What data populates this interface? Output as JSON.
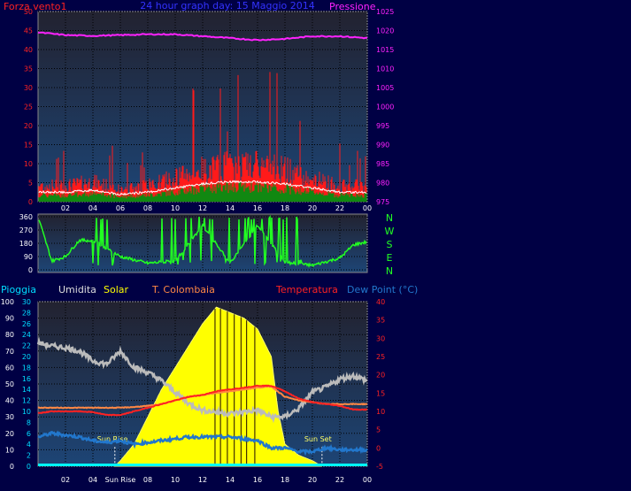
{
  "top_panel": {
    "title_left": "Forza vento1",
    "title_center": "24 hour graph day: 15 Maggio 2014",
    "title_right": "Pressione",
    "left_ticks": [
      "0",
      "5",
      "10",
      "15",
      "20",
      "25",
      "30",
      "35",
      "40",
      "45",
      "50"
    ],
    "right_ticks": [
      "975",
      "980",
      "985",
      "990",
      "995",
      "1000",
      "1005",
      "1010",
      "1015",
      "1020",
      "1025"
    ],
    "x_ticks": [
      "02",
      "04",
      "06",
      "08",
      "10",
      "12",
      "14",
      "16",
      "18",
      "20",
      "22",
      "00"
    ]
  },
  "dir_panel": {
    "left_ticks": [
      "0",
      "90",
      "180",
      "270",
      "360"
    ],
    "compass": [
      "N",
      "W",
      "S",
      "E",
      "N"
    ]
  },
  "bottom_panel": {
    "header": {
      "pioggia": "Pioggia",
      "umidita": "Umidita",
      "solar": "Solar",
      "tcol": "T. Colombaia",
      "temperatura": "Temperatura",
      "dewpoint": "Dew Point (°C)"
    },
    "pioggia_ticks": [
      "0",
      "10",
      "20",
      "30",
      "40",
      "50",
      "60",
      "70",
      "80",
      "90",
      "100"
    ],
    "solar_ticks": [
      "0",
      "2",
      "4",
      "6",
      "8",
      "10",
      "12",
      "14",
      "16",
      "18",
      "20",
      "22",
      "24",
      "26",
      "28",
      "30"
    ],
    "temp_ticks": [
      "-5",
      "0",
      "5",
      "10",
      "15",
      "20",
      "25",
      "30",
      "35",
      "40"
    ],
    "x_ticks": [
      "02",
      "04",
      "Sun Rise",
      "08",
      "10",
      "12",
      "14",
      "16",
      "18",
      "20",
      "22",
      "00"
    ],
    "sunrise_label": "Sun Rise",
    "sunset_label": "Sun Set"
  },
  "colors": {
    "background": "#000044",
    "panel_top": "#222233",
    "panel_bottom": "#1e3f6e",
    "wind": "#ff1a1a",
    "gust_white": "#ffffff",
    "wind_avg": "#118811",
    "pressure": "#ff22ff",
    "direction": "#22ff22",
    "solar": "#ffff00",
    "humidity": "#bbbbbb",
    "temperature": "#ff2222",
    "tcol": "#ff8844",
    "dewpoint": "#2277cc",
    "rain": "#00ffff"
  },
  "chart_data": [
    {
      "type": "line",
      "name_hint": "wind and pressure",
      "x_range_hours": [
        0,
        24
      ],
      "left_ylim": [
        0,
        50
      ],
      "right_ylim": [
        975,
        1025
      ],
      "grid": true,
      "series": [
        {
          "name": "Forza vento1",
          "x": [
            0,
            2,
            4,
            6,
            8,
            10,
            12,
            14,
            16,
            18,
            20,
            22,
            24
          ],
          "values": [
            4,
            4,
            5,
            3,
            4,
            6,
            8,
            9,
            9,
            8,
            6,
            4,
            4
          ]
        },
        {
          "name": "Pressione",
          "x": [
            0,
            2,
            4,
            6,
            8,
            10,
            12,
            14,
            16,
            18,
            20,
            22,
            24
          ],
          "values": [
            1019.5,
            1018.8,
            1018.6,
            1018.8,
            1019.0,
            1019.0,
            1018.5,
            1018.0,
            1017.5,
            1017.8,
            1018.5,
            1018.5,
            1018.0
          ]
        }
      ]
    },
    {
      "type": "line",
      "name_hint": "wind direction",
      "x_range_hours": [
        0,
        24
      ],
      "ylim": [
        0,
        360
      ],
      "grid": true,
      "series": [
        {
          "name": "direction",
          "x": [
            0,
            1,
            2,
            3,
            4,
            6,
            8,
            10,
            12,
            14,
            16,
            18,
            20,
            22,
            23,
            24
          ],
          "values": [
            360,
            60,
            90,
            200,
            200,
            90,
            45,
            60,
            300,
            45,
            300,
            50,
            30,
            80,
            170,
            190
          ]
        }
      ]
    },
    {
      "type": "line",
      "name_hint": "temperature humidity solar",
      "x_range_hours": [
        0,
        24
      ],
      "pioggia_ylim": [
        0,
        100
      ],
      "solar_ylim": [
        0,
        30
      ],
      "temp_ylim": [
        -5,
        40
      ],
      "grid": true,
      "series": [
        {
          "name": "Umidita",
          "x": [
            0,
            1,
            2,
            3,
            4,
            5,
            6,
            7,
            8,
            9,
            10,
            11,
            12,
            13,
            14,
            15,
            16,
            17,
            18,
            19,
            20,
            21,
            22,
            23,
            24
          ],
          "values": [
            75,
            73,
            72,
            70,
            64,
            62,
            70,
            60,
            57,
            52,
            45,
            38,
            34,
            33,
            32,
            33,
            34,
            30,
            30,
            35,
            45,
            48,
            53,
            55,
            52
          ]
        },
        {
          "name": "Solar",
          "x": [
            5.6,
            6,
            7,
            8,
            9,
            10,
            11,
            12,
            13,
            14,
            15,
            16,
            17,
            17.5,
            18,
            19,
            20,
            20.7
          ],
          "values": [
            0,
            1,
            4,
            9,
            14,
            18,
            22,
            26,
            29,
            28,
            27,
            25,
            20,
            10,
            4,
            2,
            1,
            0
          ]
        },
        {
          "name": "Temperatura",
          "x": [
            0,
            1,
            2,
            3,
            4,
            5,
            6,
            7,
            8,
            9,
            10,
            11,
            12,
            13,
            14,
            15,
            16,
            17,
            18,
            19,
            20,
            21,
            22,
            23,
            24
          ],
          "values": [
            9.5,
            10,
            10,
            10,
            9.8,
            9,
            9,
            10,
            11,
            12,
            13,
            14,
            14.5,
            15.5,
            16,
            16.5,
            17,
            17,
            15.5,
            13.5,
            12.5,
            12,
            11.5,
            10.5,
            10.5
          ]
        },
        {
          "name": "T. Colombaia",
          "x": [
            0,
            1,
            2,
            3,
            4,
            5,
            6,
            7,
            8,
            9,
            10,
            11,
            12,
            13,
            14,
            15,
            16,
            17,
            18,
            19,
            20,
            21,
            22,
            23,
            24
          ],
          "values": [
            11,
            11,
            11,
            11,
            11,
            11,
            11,
            11.2,
            11.5,
            12,
            13,
            14,
            14.5,
            15,
            15.5,
            16,
            16.5,
            16.8,
            14,
            13,
            12.5,
            12,
            12,
            12,
            12
          ]
        },
        {
          "name": "Dew Point (°C)",
          "x": [
            0,
            1,
            2,
            3,
            4,
            5,
            6,
            7,
            8,
            9,
            10,
            11,
            12,
            13,
            14,
            15,
            16,
            17,
            18,
            19,
            20,
            21,
            22,
            23,
            24
          ],
          "values": [
            3,
            4,
            3.5,
            3,
            2,
            1.5,
            2,
            1,
            1.5,
            2,
            2.5,
            3,
            3,
            3,
            3,
            2.5,
            2,
            0,
            0,
            -1,
            -1,
            0,
            -0.5,
            -0.5,
            -0.5
          ]
        },
        {
          "name": "Pioggia",
          "x": [
            0,
            24
          ],
          "values": [
            0,
            0
          ]
        }
      ]
    }
  ]
}
